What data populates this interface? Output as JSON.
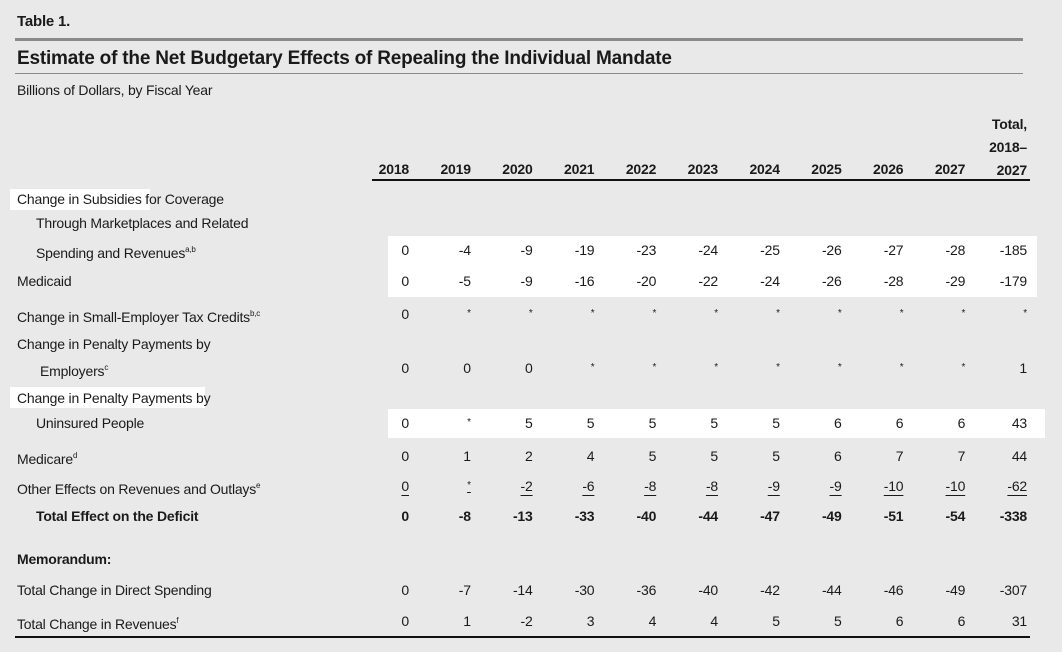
{
  "header": {
    "table_label": "Table 1.",
    "title": "Estimate of the Net Budgetary Effects of Repealing the Individual Mandate",
    "subtitle": "Billions of Dollars, by Fiscal Year"
  },
  "table": {
    "columns": [
      "2018",
      "2019",
      "2020",
      "2021",
      "2022",
      "2023",
      "2024",
      "2025",
      "2026",
      "2027"
    ],
    "total_column": [
      "Total,",
      "2018–",
      "2027"
    ],
    "rows": [
      {
        "label": [
          "Change in Subsidies for Coverage",
          "Through Marketplaces and Related",
          "Spending and Revenues"
        ],
        "note": "a,b",
        "values": [
          "0",
          "-4",
          "-9",
          "-19",
          "-23",
          "-24",
          "-25",
          "-26",
          "-27",
          "-28",
          "-185"
        ]
      },
      {
        "label": [
          "Medicaid"
        ],
        "values": [
          "0",
          "-5",
          "-9",
          "-16",
          "-20",
          "-22",
          "-24",
          "-26",
          "-28",
          "-29",
          "-179"
        ]
      },
      {
        "label": [
          "Change in Small-Employer Tax Credits"
        ],
        "note": "b,c",
        "values": [
          "0",
          "*",
          "*",
          "*",
          "*",
          "*",
          "*",
          "*",
          "*",
          "*",
          "*"
        ]
      },
      {
        "label": [
          "Change in Penalty Payments by",
          "Employers"
        ],
        "note": "c",
        "values": [
          "0",
          "0",
          "0",
          "*",
          "*",
          "*",
          "*",
          "*",
          "*",
          "*",
          "1"
        ]
      },
      {
        "label": [
          "Change in Penalty Payments by",
          "Uninsured People"
        ],
        "values": [
          "0",
          "*",
          "5",
          "5",
          "5",
          "5",
          "5",
          "6",
          "6",
          "6",
          "43"
        ]
      },
      {
        "label": [
          "Medicare"
        ],
        "note": "d",
        "values": [
          "0",
          "1",
          "2",
          "4",
          "5",
          "5",
          "5",
          "6",
          "7",
          "7",
          "44"
        ]
      },
      {
        "label": [
          "Other Effects on Revenues and Outlays"
        ],
        "note": "e",
        "values": [
          "0",
          "*",
          "-2",
          "-6",
          "-8",
          "-8",
          "-9",
          "-9",
          "-10",
          "-10",
          "-62"
        ]
      },
      {
        "label": [
          "Total Effect on the Deficit"
        ],
        "values": [
          "0",
          "-8",
          "-13",
          "-33",
          "-40",
          "-44",
          "-47",
          "-49",
          "-51",
          "-54",
          "-338"
        ]
      }
    ],
    "memorandum": {
      "title": "Memorandum:",
      "rows": [
        {
          "label": [
            "Total Change in Direct Spending"
          ],
          "values": [
            "0",
            "-7",
            "-14",
            "-30",
            "-36",
            "-40",
            "-42",
            "-44",
            "-46",
            "-49",
            "-307"
          ]
        },
        {
          "label": [
            "Total Change in Revenues"
          ],
          "note": "f",
          "values": [
            "0",
            "1",
            "-2",
            "3",
            "4",
            "4",
            "5",
            "5",
            "6",
            "6",
            "31"
          ]
        }
      ]
    }
  }
}
